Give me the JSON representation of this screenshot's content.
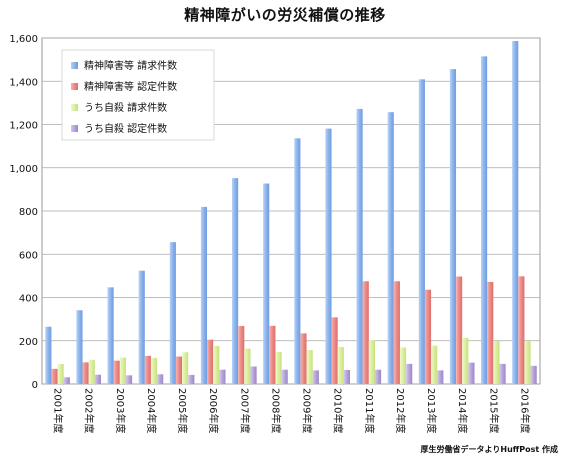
{
  "chart_data": {
    "type": "bar",
    "title": "精神障がいの労災補償の推移",
    "xlabel": "",
    "ylabel": "",
    "categories": [
      "2001年度",
      "2002年度",
      "2003年度",
      "2004年度",
      "2005年度",
      "2006年度",
      "2007年度",
      "2008年度",
      "2009年度",
      "2010年度",
      "2011年度",
      "2012年度",
      "2013年度",
      "2014年度",
      "2015年度",
      "2016年度"
    ],
    "series": [
      {
        "name": "精神障害等 請求件数",
        "color": "#8eb6ec",
        "values": [
          265,
          341,
          447,
          524,
          656,
          819,
          952,
          927,
          1136,
          1181,
          1272,
          1257,
          1409,
          1456,
          1515,
          1586
        ]
      },
      {
        "name": "精神障害等 認定件数",
        "color": "#ee8c88",
        "values": [
          70,
          100,
          108,
          130,
          127,
          205,
          268,
          269,
          234,
          308,
          475,
          475,
          436,
          497,
          472,
          498
        ]
      },
      {
        "name": "うち自殺 請求件数",
        "color": "#dcf0a2",
        "values": [
          92,
          112,
          122,
          121,
          147,
          176,
          164,
          148,
          157,
          171,
          202,
          169,
          177,
          213,
          199,
          198
        ]
      },
      {
        "name": "うち自殺 認定件数",
        "color": "#b9a6dc",
        "values": [
          31,
          43,
          40,
          45,
          42,
          66,
          81,
          66,
          63,
          65,
          66,
          93,
          63,
          99,
          93,
          84
        ]
      }
    ],
    "ylim": [
      0,
      1600
    ],
    "yticks": [
      0,
      200,
      400,
      600,
      800,
      1000,
      1200,
      1400,
      1600
    ],
    "ytick_labels": [
      "0",
      "200",
      "400",
      "600",
      "800",
      "1,000",
      "1,200",
      "1,400",
      "1,600"
    ],
    "grid": true,
    "legend": "top-left",
    "source_note": "厚生労働省データよりHuffPost 作成"
  }
}
